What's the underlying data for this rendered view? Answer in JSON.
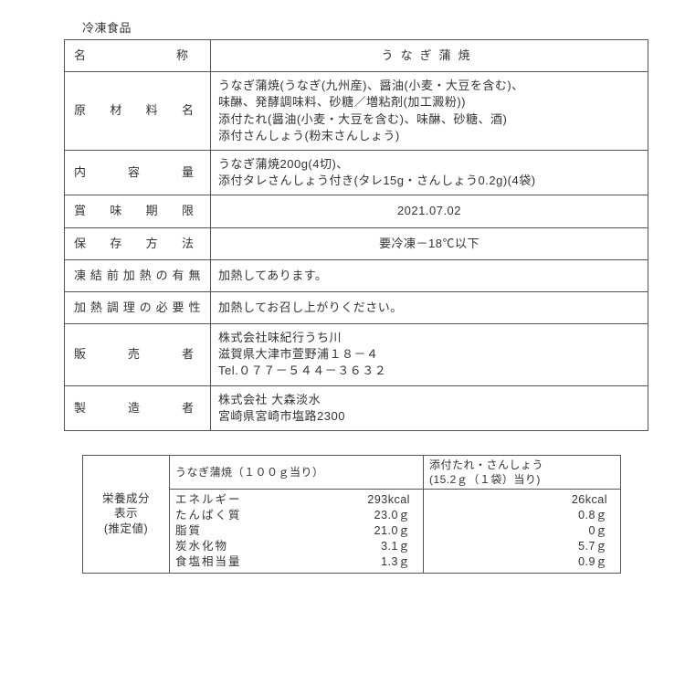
{
  "header": "冷凍食品",
  "rows": [
    {
      "label": "名称",
      "value": "うなぎ蒲焼",
      "labelClass": "spaced-wide",
      "valueClass": "spaced centered"
    },
    {
      "label": "原材料名",
      "value": "うなぎ蒲焼(うなぎ(九州産)、醤油(小麦・大豆を含む)、\n味醂、発酵調味料、砂糖／増粘剤(加工澱粉))\n添付たれ(醤油(小麦・大豆を含む)、味醂、砂糖、酒)\n添付さんしょう(粉末さんしょう)",
      "labelClass": "spaced",
      "valueClass": ""
    },
    {
      "label": "内容量",
      "value": "うなぎ蒲焼200g(4切)、\n添付タレさんしょう付き(タレ15g・さんしょう0.2g)(4袋)",
      "labelClass": "spaced",
      "valueClass": ""
    },
    {
      "label": "賞味期限",
      "value": "2021.07.02",
      "labelClass": "spaced",
      "valueClass": "centered"
    },
    {
      "label": "保存方法",
      "value": "要冷凍－18℃以下",
      "labelClass": "spaced",
      "valueClass": "centered"
    },
    {
      "label": "凍結前加熱の有無",
      "value": "加熱してあります。",
      "labelClass": "",
      "valueClass": ""
    },
    {
      "label": "加熱調理の必要性",
      "value": "加熱してお召し上がりください。",
      "labelClass": "",
      "valueClass": ""
    },
    {
      "label": "販売者",
      "value": "株式会社味紀行うち川\n滋賀県大津市萱野浦１８－４\nTel.０７７－５４４－３６３２",
      "labelClass": "spaced",
      "valueClass": ""
    },
    {
      "label": "製造者",
      "value": "株式会社 大森淡水\n宮崎県宮崎市塩路2300",
      "labelClass": "spaced",
      "valueClass": ""
    }
  ],
  "nutrition": {
    "sideLabel": "栄養成分\n表示\n(推定値)",
    "headers": [
      "うなぎ蒲焼（１００ｇ当り）",
      "添付たれ・さんしょう\n(15.2ｇ（１袋）当り)"
    ],
    "items": [
      {
        "name": "エネルギー",
        "v1": "293kcal",
        "v2": "26kcal"
      },
      {
        "name": "たんぱく質",
        "v1": "23.0ｇ",
        "v2": "0.8ｇ"
      },
      {
        "name": "脂質",
        "v1": "21.0ｇ",
        "v2": "0ｇ"
      },
      {
        "name": "炭水化物",
        "v1": "3.1ｇ",
        "v2": "5.7ｇ"
      },
      {
        "name": "食塩相当量",
        "v1": "1.3ｇ",
        "v2": "0.9ｇ"
      }
    ]
  }
}
